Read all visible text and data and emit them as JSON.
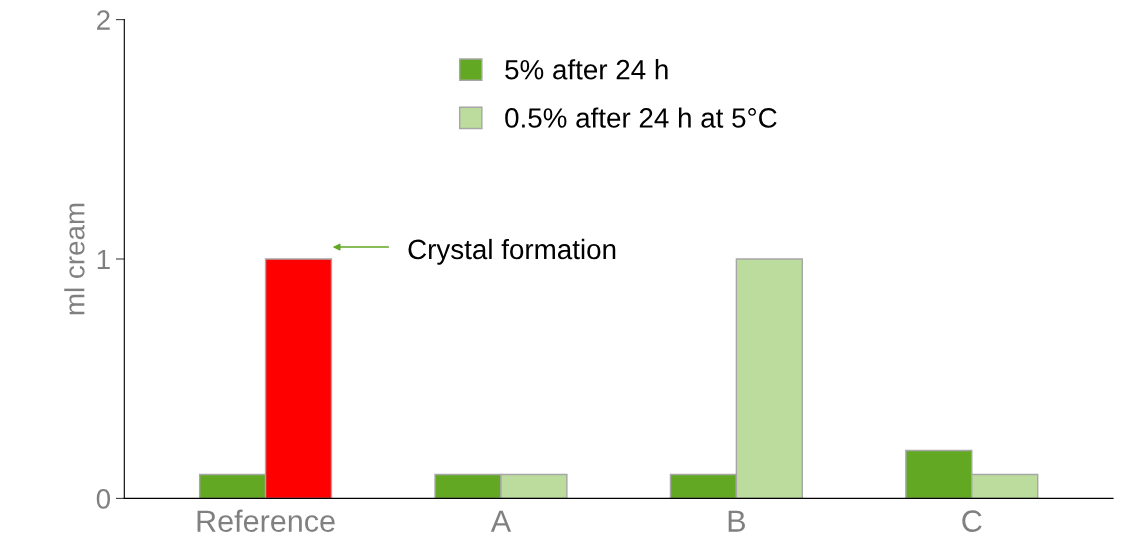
{
  "chart_data": {
    "type": "bar",
    "categories": [
      "Reference",
      "A",
      "B",
      "C"
    ],
    "ylabel": "ml cream",
    "series": [
      {
        "name": "5% after 24 h",
        "color": "#62a823",
        "values": [
          0.1,
          0.1,
          0.1,
          0.2
        ]
      },
      {
        "name": "0.5% after 24 h at 5°C",
        "color": "#bbdc9c",
        "colors": [
          "#ff0000",
          "#bbdc9c",
          "#bbdc9c",
          "#bbdc9c"
        ],
        "values": [
          1,
          0.1,
          1,
          0.1
        ]
      }
    ],
    "ylim": [
      0,
      2
    ],
    "yticks": [
      0,
      1,
      2
    ],
    "grid": false,
    "legend": "top",
    "annotations": [
      "Crystal formation"
    ]
  }
}
